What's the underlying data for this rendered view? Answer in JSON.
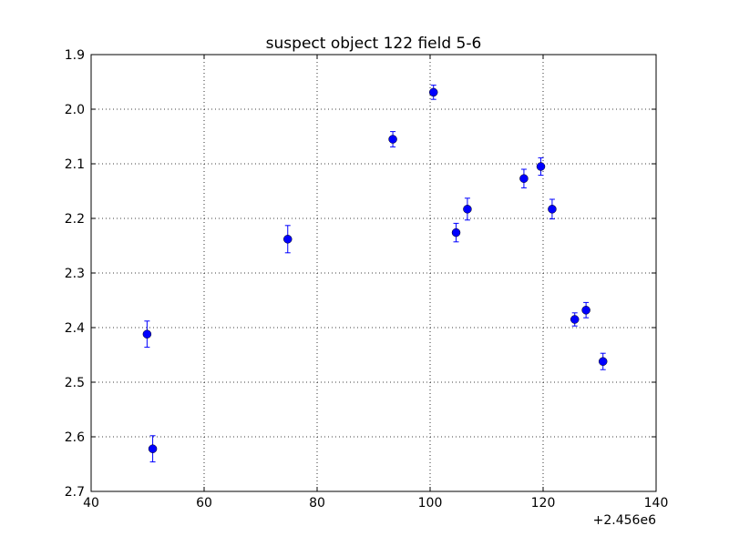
{
  "chart_data": {
    "type": "scatter",
    "title": "suspect object 122 field 5-6",
    "xlabel": "",
    "ylabel": "",
    "x_offset_label": "+2.456e6",
    "xlim": [
      40,
      140
    ],
    "ylim": [
      1.9,
      2.7
    ],
    "y_inverted": true,
    "x_ticks": [
      40,
      60,
      80,
      100,
      120,
      140
    ],
    "x_tick_labels": [
      "40",
      "60",
      "80",
      "100",
      "120",
      "140"
    ],
    "y_ticks": [
      1.9,
      2.0,
      2.1,
      2.2,
      2.3,
      2.4,
      2.5,
      2.6,
      2.7
    ],
    "y_tick_labels": [
      "1.9",
      "2.0",
      "2.1",
      "2.2",
      "2.3",
      "2.4",
      "2.5",
      "2.6",
      "2.7"
    ],
    "grid": true,
    "marker_color": "#0000ff",
    "points": [
      {
        "x": 49.9,
        "y": 2.412,
        "err": 0.024
      },
      {
        "x": 50.9,
        "y": 2.622,
        "err": 0.024
      },
      {
        "x": 74.8,
        "y": 2.238,
        "err": 0.025
      },
      {
        "x": 93.4,
        "y": 2.055,
        "err": 0.014
      },
      {
        "x": 100.6,
        "y": 1.969,
        "err": 0.013
      },
      {
        "x": 104.6,
        "y": 2.226,
        "err": 0.017
      },
      {
        "x": 106.6,
        "y": 2.183,
        "err": 0.02
      },
      {
        "x": 116.6,
        "y": 2.127,
        "err": 0.017
      },
      {
        "x": 119.6,
        "y": 2.105,
        "err": 0.016
      },
      {
        "x": 121.6,
        "y": 2.183,
        "err": 0.018
      },
      {
        "x": 125.6,
        "y": 2.385,
        "err": 0.012
      },
      {
        "x": 127.6,
        "y": 2.368,
        "err": 0.014
      },
      {
        "x": 130.6,
        "y": 2.462,
        "err": 0.015
      }
    ]
  }
}
